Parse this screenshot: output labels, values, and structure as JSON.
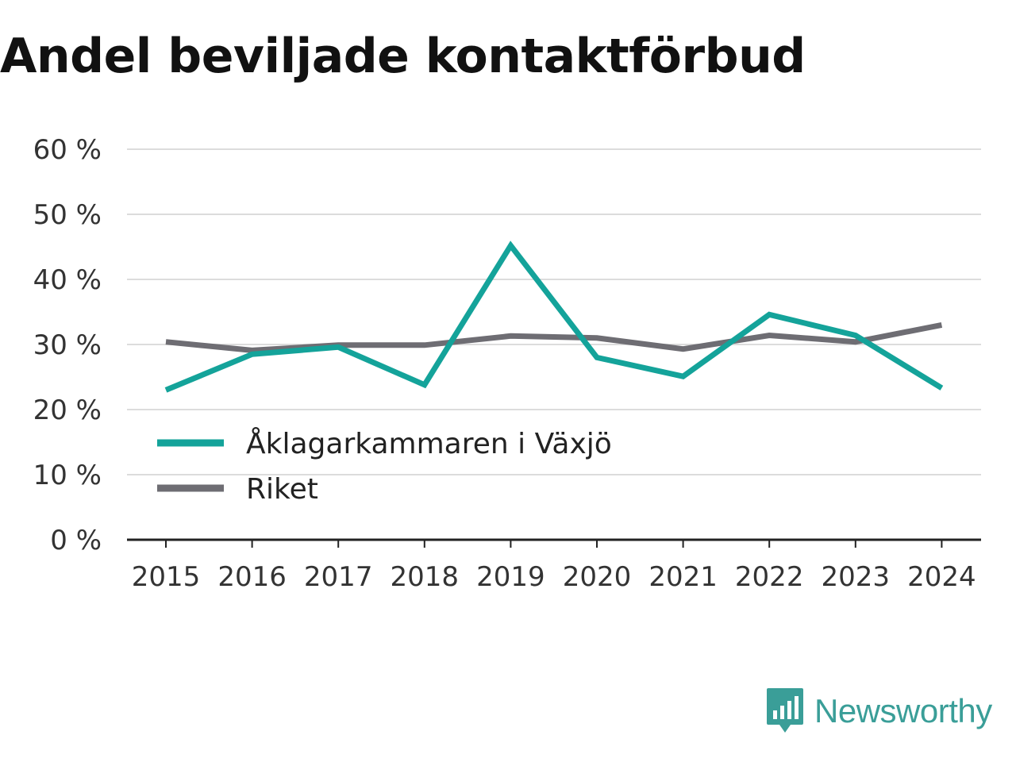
{
  "title": "Andel beviljade kontaktförbud",
  "brand": {
    "name": "Newsworthy",
    "icon": "bar-chart-speech-bubble-icon",
    "color": "#3a9e98"
  },
  "chart_data": {
    "type": "line",
    "title": "Andel beviljade kontaktförbud",
    "xlabel": "",
    "ylabel": "",
    "categories": [
      "2015",
      "2016",
      "2017",
      "2018",
      "2019",
      "2020",
      "2021",
      "2022",
      "2023",
      "2024"
    ],
    "y_ticks": [
      "0 %",
      "10 %",
      "20 %",
      "30 %",
      "40 %",
      "50 %",
      "60 %"
    ],
    "ylim": [
      0,
      60
    ],
    "grid": true,
    "legend_position": "lower-left",
    "series": [
      {
        "name": "Åklagarkammaren i Växjö",
        "color": "#14a39a",
        "values": [
          23.0,
          28.5,
          29.6,
          23.8,
          45.2,
          28.0,
          25.1,
          34.6,
          31.4,
          23.3
        ]
      },
      {
        "name": "Riket",
        "color": "#6e6d73",
        "values": [
          30.4,
          29.1,
          29.9,
          29.9,
          31.3,
          31.0,
          29.3,
          31.4,
          30.4,
          33.0
        ]
      }
    ]
  }
}
